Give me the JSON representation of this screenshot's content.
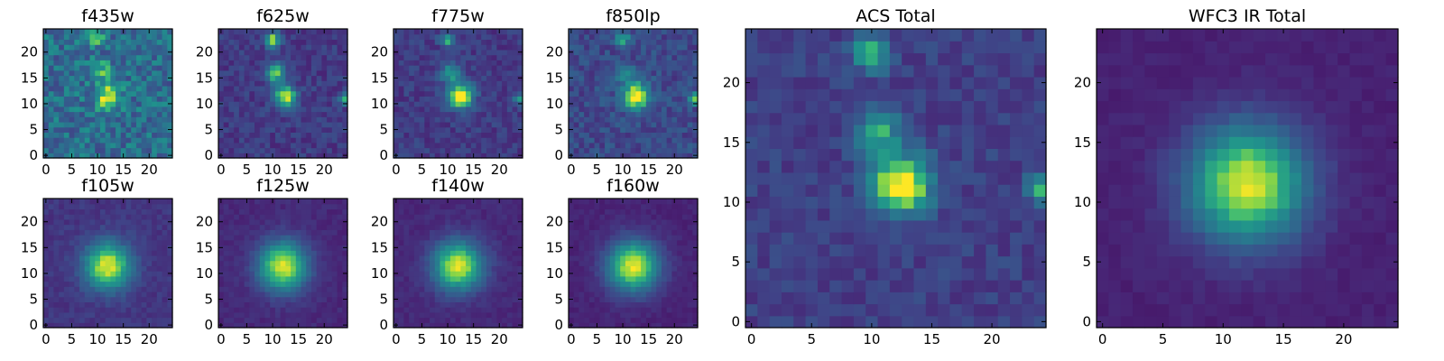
{
  "chart_data": [
    {
      "type": "heatmap",
      "title": "f435w",
      "image": "f435w",
      "grid": false,
      "colormap": "viridis",
      "xlim": [
        -0.5,
        24.5
      ],
      "ylim": [
        -0.5,
        24.5
      ],
      "xticks": [
        0,
        5,
        10,
        15,
        20
      ],
      "yticks": [
        0,
        5,
        10,
        15,
        20
      ],
      "shape": [
        25,
        25
      ],
      "sources": [
        {
          "x": 12,
          "y": 11.5,
          "amplitude": 0.55,
          "sigma": 1.6
        },
        {
          "x": 10.5,
          "y": 16.5,
          "amplitude": 0.35,
          "sigma": 1.3
        },
        {
          "x": 9.5,
          "y": 23,
          "amplitude": 0.4,
          "sigma": 1.0
        }
      ],
      "background": 0.45,
      "noise": 0.18
    },
    {
      "type": "heatmap",
      "title": "f625w",
      "image": "f625w",
      "grid": false,
      "colormap": "viridis",
      "xlim": [
        -0.5,
        24.5
      ],
      "ylim": [
        -0.5,
        24.5
      ],
      "xticks": [
        0,
        5,
        10,
        15,
        20
      ],
      "yticks": [
        0,
        5,
        10,
        15,
        20
      ],
      "shape": [
        25,
        25
      ],
      "sources": [
        {
          "x": 12.5,
          "y": 11.5,
          "amplitude": 0.75,
          "sigma": 1.5
        },
        {
          "x": 10.5,
          "y": 16,
          "amplitude": 0.6,
          "sigma": 1.3
        },
        {
          "x": 10,
          "y": 22.5,
          "amplitude": 0.7,
          "sigma": 1.0
        },
        {
          "x": 24,
          "y": 11,
          "amplitude": 0.55,
          "sigma": 0.8
        }
      ],
      "background": 0.22,
      "noise": 0.09
    },
    {
      "type": "heatmap",
      "title": "f775w",
      "image": "f775w",
      "grid": false,
      "colormap": "viridis",
      "xlim": [
        -0.5,
        24.5
      ],
      "ylim": [
        -0.5,
        24.5
      ],
      "xticks": [
        0,
        5,
        10,
        15,
        20
      ],
      "yticks": [
        0,
        5,
        10,
        15,
        20
      ],
      "shape": [
        25,
        25
      ],
      "sources": [
        {
          "x": 12.5,
          "y": 11.5,
          "amplitude": 0.85,
          "sigma": 1.7
        },
        {
          "x": 10.5,
          "y": 16,
          "amplitude": 0.45,
          "sigma": 1.3
        },
        {
          "x": 10,
          "y": 22.5,
          "amplitude": 0.5,
          "sigma": 1.0
        },
        {
          "x": 24,
          "y": 11,
          "amplitude": 0.5,
          "sigma": 0.8
        }
      ],
      "background": 0.22,
      "noise": 0.09
    },
    {
      "type": "heatmap",
      "title": "f850lp",
      "image": "f850lp",
      "grid": false,
      "colormap": "viridis",
      "xlim": [
        -0.5,
        24.5
      ],
      "ylim": [
        -0.5,
        24.5
      ],
      "xticks": [
        0,
        5,
        10,
        15,
        20
      ],
      "yticks": [
        0,
        5,
        10,
        15,
        20
      ],
      "shape": [
        25,
        25
      ],
      "sources": [
        {
          "x": 12.5,
          "y": 11.5,
          "amplitude": 0.8,
          "sigma": 1.8
        },
        {
          "x": 10.5,
          "y": 16,
          "amplitude": 0.35,
          "sigma": 1.3
        },
        {
          "x": 10,
          "y": 22.5,
          "amplitude": 0.4,
          "sigma": 1.0
        },
        {
          "x": 24,
          "y": 11,
          "amplitude": 0.5,
          "sigma": 0.8
        }
      ],
      "background": 0.28,
      "noise": 0.11
    },
    {
      "type": "heatmap",
      "title": "f105w",
      "image": "f105w",
      "grid": false,
      "colormap": "viridis",
      "xlim": [
        -0.5,
        24.5
      ],
      "ylim": [
        -0.5,
        24.5
      ],
      "xticks": [
        0,
        5,
        10,
        15,
        20
      ],
      "yticks": [
        0,
        5,
        10,
        15,
        20
      ],
      "shape": [
        25,
        25
      ],
      "sources": [
        {
          "x": 12,
          "y": 11.5,
          "amplitude": 0.78,
          "sigma": 3.2
        }
      ],
      "background": 0.2,
      "noise": 0.05
    },
    {
      "type": "heatmap",
      "title": "f125w",
      "image": "f125w",
      "grid": false,
      "colormap": "viridis",
      "xlim": [
        -0.5,
        24.5
      ],
      "ylim": [
        -0.5,
        24.5
      ],
      "xticks": [
        0,
        5,
        10,
        15,
        20
      ],
      "yticks": [
        0,
        5,
        10,
        15,
        20
      ],
      "shape": [
        25,
        25
      ],
      "sources": [
        {
          "x": 12,
          "y": 11.5,
          "amplitude": 0.82,
          "sigma": 3.4
        }
      ],
      "background": 0.15,
      "noise": 0.04
    },
    {
      "type": "heatmap",
      "title": "f140w",
      "image": "f140w",
      "grid": false,
      "colormap": "viridis",
      "xlim": [
        -0.5,
        24.5
      ],
      "ylim": [
        -0.5,
        24.5
      ],
      "xticks": [
        0,
        5,
        10,
        15,
        20
      ],
      "yticks": [
        0,
        5,
        10,
        15,
        20
      ],
      "shape": [
        25,
        25
      ],
      "sources": [
        {
          "x": 12,
          "y": 11.5,
          "amplitude": 0.82,
          "sigma": 3.4
        }
      ],
      "background": 0.15,
      "noise": 0.04
    },
    {
      "type": "heatmap",
      "title": "f160w",
      "image": "f160w",
      "grid": false,
      "colormap": "viridis",
      "xlim": [
        -0.5,
        24.5
      ],
      "ylim": [
        -0.5,
        24.5
      ],
      "xticks": [
        0,
        5,
        10,
        15,
        20
      ],
      "yticks": [
        0,
        5,
        10,
        15,
        20
      ],
      "shape": [
        25,
        25
      ],
      "sources": [
        {
          "x": 12,
          "y": 11.5,
          "amplitude": 0.85,
          "sigma": 3.5
        }
      ],
      "background": 0.13,
      "noise": 0.035
    },
    {
      "type": "heatmap",
      "title": "ACS Total",
      "image": "acs-total",
      "grid": false,
      "colormap": "viridis",
      "xlim": [
        -0.5,
        24.5
      ],
      "ylim": [
        -0.5,
        24.5
      ],
      "xticks": [
        0,
        5,
        10,
        15,
        20
      ],
      "yticks": [
        0,
        5,
        10,
        15,
        20
      ],
      "shape": [
        25,
        25
      ],
      "sources": [
        {
          "x": 12.5,
          "y": 11.5,
          "amplitude": 0.85,
          "sigma": 1.7
        },
        {
          "x": 10.5,
          "y": 16,
          "amplitude": 0.5,
          "sigma": 1.3
        },
        {
          "x": 10,
          "y": 22.5,
          "amplitude": 0.62,
          "sigma": 1.0
        },
        {
          "x": 24,
          "y": 11,
          "amplitude": 0.55,
          "sigma": 0.8
        }
      ],
      "background": 0.24,
      "noise": 0.08
    },
    {
      "type": "heatmap",
      "title": "WFC3 IR Total",
      "image": "wfc3-ir-total",
      "grid": false,
      "colormap": "viridis",
      "xlim": [
        -0.5,
        24.5
      ],
      "ylim": [
        -0.5,
        24.5
      ],
      "xticks": [
        0,
        5,
        10,
        15,
        20
      ],
      "yticks": [
        0,
        5,
        10,
        15,
        20
      ],
      "shape": [
        25,
        25
      ],
      "sources": [
        {
          "x": 12,
          "y": 11.5,
          "amplitude": 0.85,
          "sigma": 3.5
        }
      ],
      "background": 0.12,
      "noise": 0.03
    }
  ]
}
